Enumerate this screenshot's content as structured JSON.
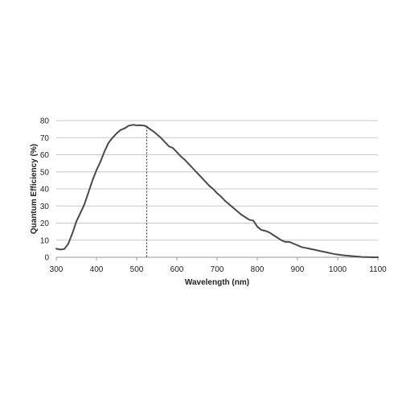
{
  "chart_data": {
    "type": "line",
    "xlabel": "Wavelength (nm)",
    "ylabel": "Quantum Efficiency (%)",
    "xlim": [
      300,
      1100
    ],
    "ylim": [
      0,
      80
    ],
    "x_ticks": [
      "300",
      "400",
      "500",
      "600",
      "700",
      "800",
      "900",
      "1000",
      "1100"
    ],
    "y_ticks": [
      "0",
      "10",
      "20",
      "30",
      "40",
      "50",
      "60",
      "70",
      "80"
    ],
    "grid": "horizontal",
    "legend": "none",
    "series": [
      {
        "x": [
          300,
          310,
          320,
          330,
          340,
          350,
          360,
          370,
          380,
          390,
          400,
          410,
          420,
          430,
          440,
          450,
          460,
          470,
          480,
          490,
          500,
          510,
          520,
          525,
          530,
          540,
          550,
          560,
          570,
          580,
          590,
          600,
          610,
          620,
          630,
          640,
          650,
          660,
          670,
          680,
          690,
          700,
          710,
          720,
          730,
          740,
          750,
          760,
          770,
          780,
          790,
          800,
          810,
          820,
          830,
          840,
          850,
          860,
          870,
          880,
          890,
          900,
          910,
          920,
          930,
          940,
          950,
          960,
          970,
          980,
          990,
          1000,
          1010,
          1020,
          1030,
          1040,
          1050,
          1060,
          1070,
          1080,
          1090,
          1100
        ],
        "y": [
          5,
          4.5,
          4.8,
          8,
          14,
          21,
          26,
          31,
          38,
          45,
          51,
          56,
          62,
          67,
          70,
          72.5,
          74.5,
          75.5,
          77,
          77.5,
          77.2,
          77.3,
          77,
          76.5,
          75.5,
          74,
          72,
          70,
          67.5,
          65,
          64,
          61.5,
          59,
          57,
          54.5,
          52,
          49.5,
          47,
          44.5,
          42,
          40,
          37.5,
          35.5,
          33,
          31,
          29,
          27,
          25,
          23.5,
          22,
          21.5,
          18,
          16,
          15.5,
          14.5,
          13,
          11.5,
          10,
          9,
          9,
          8,
          7,
          6,
          5.5,
          5,
          4.5,
          4,
          3.5,
          3,
          2.5,
          2,
          1.6,
          1.3,
          1,
          0.8,
          0.6,
          0.4,
          0.2,
          0.1,
          0.05,
          0,
          0
        ]
      }
    ],
    "annotations": [
      {
        "type": "vertical-dotted-line",
        "x": 525
      }
    ]
  }
}
